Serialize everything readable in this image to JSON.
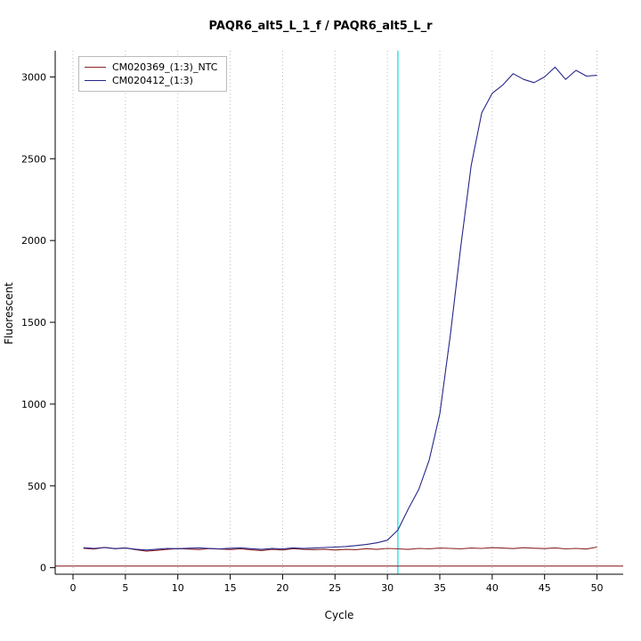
{
  "title": "PAQR6_alt5_L_1_f / PAQR6_alt5_L_r",
  "chart_data": {
    "type": "line",
    "title": "PAQR6_alt5_L_1_f / PAQR6_alt5_L_r",
    "xlabel": "Cycle",
    "ylabel": "Fluorescent",
    "xlim": [
      -1.7,
      52.5
    ],
    "ylim": [
      -40,
      3160
    ],
    "x_ticks": [
      0,
      5,
      10,
      15,
      20,
      25,
      30,
      35,
      40,
      45,
      50
    ],
    "y_ticks": [
      0,
      500,
      1000,
      1500,
      2000,
      2500,
      3000
    ],
    "grid": "vertical-dotted",
    "grid_color": "#bbbbbb",
    "legend_position": "top-left",
    "threshold_line": {
      "y": 10,
      "color": "#8b2626"
    },
    "ct_line": {
      "x": 31,
      "color": "#00e0e0"
    },
    "x": [
      1,
      2,
      3,
      4,
      5,
      6,
      7,
      8,
      9,
      10,
      11,
      12,
      13,
      14,
      15,
      16,
      17,
      18,
      19,
      20,
      21,
      22,
      23,
      24,
      25,
      26,
      27,
      28,
      29,
      30,
      31,
      32,
      33,
      34,
      35,
      36,
      37,
      38,
      39,
      40,
      41,
      42,
      43,
      44,
      45,
      46,
      47,
      48,
      49,
      50
    ],
    "series": [
      {
        "name": "CM020369_(1:3)_NTC",
        "color": "#8b2626",
        "values": [
          118,
          114,
          124,
          117,
          121,
          110,
          101,
          106,
          112,
          117,
          114,
          111,
          117,
          114,
          111,
          115,
          109,
          105,
          112,
          108,
          116,
          112,
          110,
          113,
          108,
          112,
          110,
          116,
          112,
          118,
          115,
          112,
          118,
          115,
          120,
          118,
          115,
          120,
          118,
          122,
          120,
          117,
          122,
          119,
          117,
          121,
          115,
          118,
          114,
          126
        ]
      },
      {
        "name": "CM020412_(1:3)",
        "color": "#26268b",
        "values": [
          122,
          118,
          123,
          116,
          120,
          113,
          108,
          113,
          118,
          116,
          119,
          121,
          118,
          115,
          119,
          121,
          116,
          112,
          118,
          115,
          121,
          118,
          120,
          123,
          126,
          129,
          135,
          142,
          152,
          168,
          230,
          360,
          480,
          660,
          940,
          1420,
          1960,
          2460,
          2780,
          2900,
          2950,
          3020,
          2985,
          2965,
          3000,
          3060,
          2985,
          3040,
          3005,
          3010
        ]
      }
    ]
  }
}
